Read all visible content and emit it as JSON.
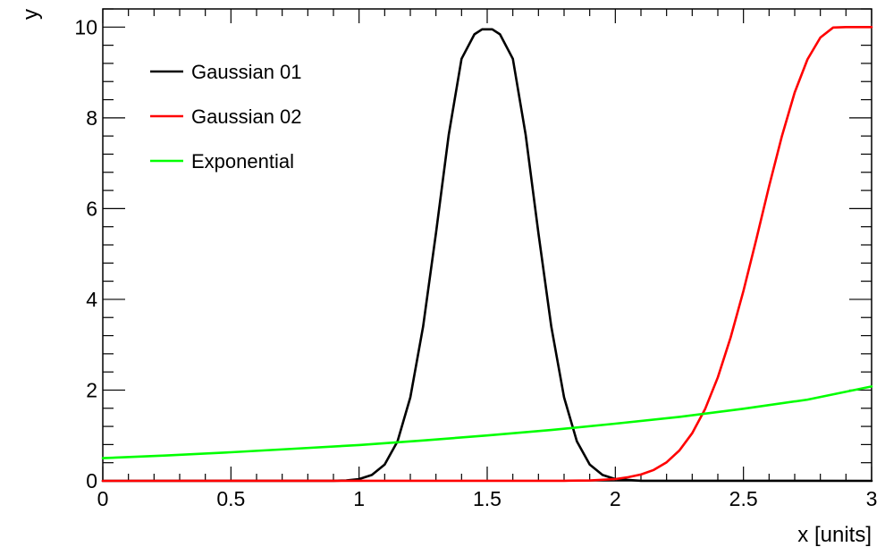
{
  "chart_data": {
    "type": "line",
    "title": "",
    "xlabel": "x [units]",
    "ylabel": "y",
    "xlim": [
      0,
      3
    ],
    "ylim": [
      0,
      10.4
    ],
    "x_ticks": [
      0,
      0.5,
      1,
      1.5,
      2,
      2.5,
      3
    ],
    "x_tick_labels": [
      "0",
      "0.5",
      "1",
      "1.5",
      "2",
      "2.5",
      "3"
    ],
    "y_ticks": [
      0,
      2,
      4,
      6,
      8,
      10
    ],
    "y_tick_labels": [
      "0",
      "2",
      "4",
      "6",
      "8",
      "10"
    ],
    "grid": false,
    "legend_position": "top-left",
    "series": [
      {
        "name": "Gaussian 01",
        "color": "#000000",
        "x": [
          0,
          0.9,
          0.95,
          1.0,
          1.05,
          1.1,
          1.15,
          1.2,
          1.25,
          1.3,
          1.35,
          1.4,
          1.45,
          1.48,
          1.5,
          1.52,
          1.55,
          1.6,
          1.65,
          1.7,
          1.75,
          1.8,
          1.85,
          1.9,
          1.95,
          2.0,
          2.1,
          3.0
        ],
        "y": [
          0,
          0.002,
          0.01,
          0.04,
          0.13,
          0.36,
          0.87,
          1.84,
          3.4,
          5.46,
          7.63,
          9.3,
          9.84,
          9.95,
          9.95,
          9.95,
          9.84,
          9.3,
          7.63,
          5.46,
          3.4,
          1.84,
          0.87,
          0.36,
          0.13,
          0.04,
          0.002,
          0
        ]
      },
      {
        "name": "Gaussian 02",
        "color": "#ff0000",
        "x": [
          0,
          1.8,
          1.9,
          2.0,
          2.05,
          2.1,
          2.15,
          2.2,
          2.25,
          2.3,
          2.35,
          2.4,
          2.45,
          2.5,
          2.55,
          2.6,
          2.65,
          2.7,
          2.75,
          2.8,
          2.85,
          2.9,
          2.95,
          3.0
        ],
        "y": [
          0,
          0.002,
          0.008,
          0.04,
          0.08,
          0.14,
          0.24,
          0.41,
          0.67,
          1.05,
          1.58,
          2.28,
          3.16,
          4.19,
          5.32,
          6.49,
          7.6,
          8.56,
          9.29,
          9.77,
          9.99,
          10.0,
          10.0,
          10.0
        ]
      },
      {
        "name": "Exponential",
        "color": "#00ff00",
        "x": [
          0,
          0.25,
          0.5,
          0.75,
          1.0,
          1.25,
          1.5,
          1.75,
          2.0,
          2.25,
          2.5,
          2.75,
          3.0
        ],
        "y": [
          0.5,
          0.56,
          0.63,
          0.71,
          0.79,
          0.89,
          1.0,
          1.12,
          1.26,
          1.41,
          1.59,
          1.79,
          2.08
        ]
      }
    ]
  }
}
